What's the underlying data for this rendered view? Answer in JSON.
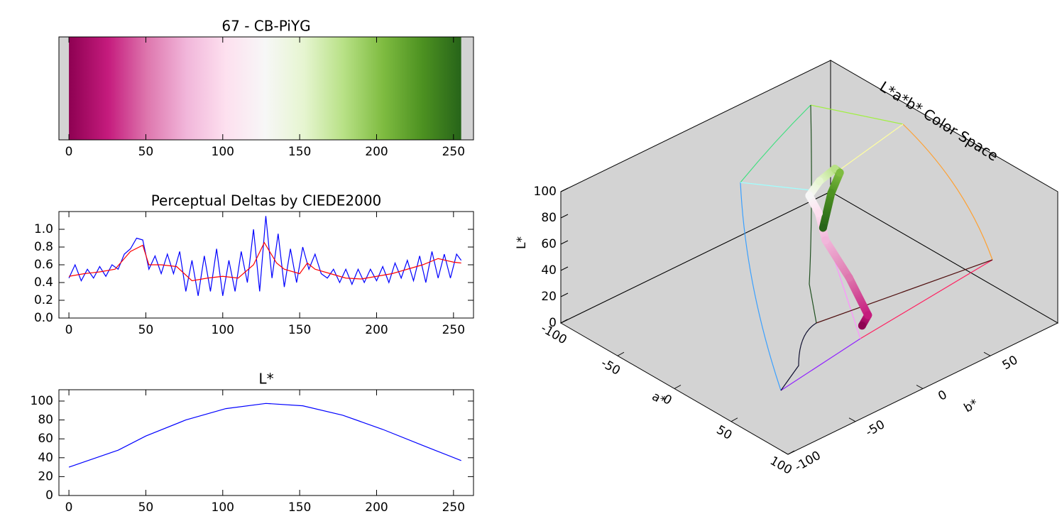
{
  "chart_data": [
    {
      "type": "colorbar",
      "title": "67 - CB-PiYG",
      "colors": [
        "#8e0152",
        "#c51b7d",
        "#de77ae",
        "#f1b6da",
        "#fde0ef",
        "#f7f7f7",
        "#e6f5d0",
        "#b8e186",
        "#7fbc41",
        "#4d9221",
        "#276419"
      ],
      "range": [
        0,
        255
      ],
      "xlim": [
        -6.5,
        263
      ],
      "xticks": [
        0,
        50,
        100,
        150,
        200,
        250
      ]
    },
    {
      "type": "line",
      "title": "Perceptual Deltas by CIEDE2000",
      "series": [
        {
          "color": "#0000ff",
          "x": [
            0,
            4,
            8,
            12,
            16,
            20,
            24,
            28,
            32,
            36,
            40,
            44,
            48,
            52,
            56,
            60,
            64,
            68,
            72,
            76,
            80,
            84,
            88,
            92,
            96,
            100,
            104,
            108,
            112,
            116,
            120,
            124,
            128,
            132,
            136,
            140,
            144,
            148,
            152,
            156,
            160,
            164,
            168,
            172,
            176,
            180,
            184,
            188,
            192,
            196,
            200,
            204,
            208,
            212,
            216,
            220,
            224,
            228,
            232,
            236,
            240,
            244,
            248,
            252,
            255
          ],
          "values": [
            0.45,
            0.6,
            0.42,
            0.55,
            0.45,
            0.58,
            0.47,
            0.6,
            0.55,
            0.72,
            0.78,
            0.9,
            0.88,
            0.55,
            0.7,
            0.5,
            0.72,
            0.5,
            0.75,
            0.3,
            0.65,
            0.25,
            0.7,
            0.3,
            0.78,
            0.25,
            0.65,
            0.3,
            0.75,
            0.4,
            1.0,
            0.3,
            1.15,
            0.45,
            0.95,
            0.35,
            0.78,
            0.4,
            0.8,
            0.55,
            0.72,
            0.5,
            0.45,
            0.55,
            0.4,
            0.55,
            0.38,
            0.55,
            0.4,
            0.55,
            0.42,
            0.58,
            0.4,
            0.62,
            0.45,
            0.65,
            0.42,
            0.7,
            0.4,
            0.75,
            0.45,
            0.72,
            0.45,
            0.72,
            0.65
          ]
        },
        {
          "color": "#ff0000",
          "x": [
            0,
            10,
            20,
            30,
            40,
            48,
            52,
            60,
            70,
            80,
            90,
            100,
            110,
            120,
            127,
            135,
            140,
            150,
            155,
            160,
            170,
            180,
            190,
            200,
            210,
            220,
            230,
            240,
            250,
            255
          ],
          "values": [
            0.47,
            0.5,
            0.52,
            0.55,
            0.75,
            0.82,
            0.6,
            0.6,
            0.58,
            0.42,
            0.45,
            0.47,
            0.45,
            0.6,
            0.85,
            0.62,
            0.55,
            0.5,
            0.62,
            0.55,
            0.5,
            0.45,
            0.44,
            0.47,
            0.5,
            0.55,
            0.6,
            0.67,
            0.63,
            0.62
          ]
        }
      ],
      "xlim": [
        -6.5,
        263
      ],
      "xticks": [
        0,
        50,
        100,
        150,
        200,
        250
      ],
      "ylim": [
        0,
        1.2
      ],
      "yticks": [
        {
          "value": 0,
          "label": "0.0"
        },
        0.2,
        0.4,
        0.6,
        0.8,
        {
          "value": 1,
          "label": "1.0"
        }
      ]
    },
    {
      "type": "line",
      "title": "L*",
      "series": [
        {
          "color": "#0000ff",
          "x": [
            0,
            32,
            50,
            76,
            102,
            128,
            152,
            178,
            204,
            230,
            255
          ],
          "values": [
            30,
            48,
            63,
            80,
            92,
            97.5,
            95,
            85,
            70,
            53,
            37
          ]
        }
      ],
      "xlim": [
        -6.5,
        263
      ],
      "xticks": [
        0,
        50,
        100,
        150,
        200,
        250
      ],
      "ylim": [
        0,
        112
      ],
      "yticks": [
        0,
        20,
        40,
        60,
        80,
        100
      ]
    },
    {
      "type": "scatter3d",
      "title": "L*a*b* Color Space",
      "xlabel": "a*",
      "ylabel": "b*",
      "zlabel": "L*",
      "xlim": [
        -100,
        100
      ],
      "ylim": [
        -100,
        100
      ],
      "zlim": [
        0,
        100
      ],
      "xticks": [
        -100,
        -50,
        0,
        50,
        100
      ],
      "yticks": [
        -100,
        -50,
        0,
        50
      ],
      "zticks": [
        0,
        20,
        40,
        60,
        80,
        100
      ],
      "points": {
        "a": [
          56,
          66,
          47,
          25,
          12,
          0,
          -10,
          -25,
          -36,
          -40,
          -33
        ],
        "b": [
          -8,
          -12,
          -10,
          -9,
          -3,
          0,
          16,
          40,
          53,
          50,
          38
        ],
        "L": [
          30,
          45,
          63,
          80,
          91,
          97,
          95,
          85,
          70,
          54,
          37
        ],
        "colors": [
          "#8e0152",
          "#c51b7d",
          "#de77ae",
          "#f1b6da",
          "#fde0ef",
          "#f7f7f7",
          "#e6f5d0",
          "#b8e186",
          "#7fbc41",
          "#4d9221",
          "#276419"
        ]
      }
    }
  ]
}
